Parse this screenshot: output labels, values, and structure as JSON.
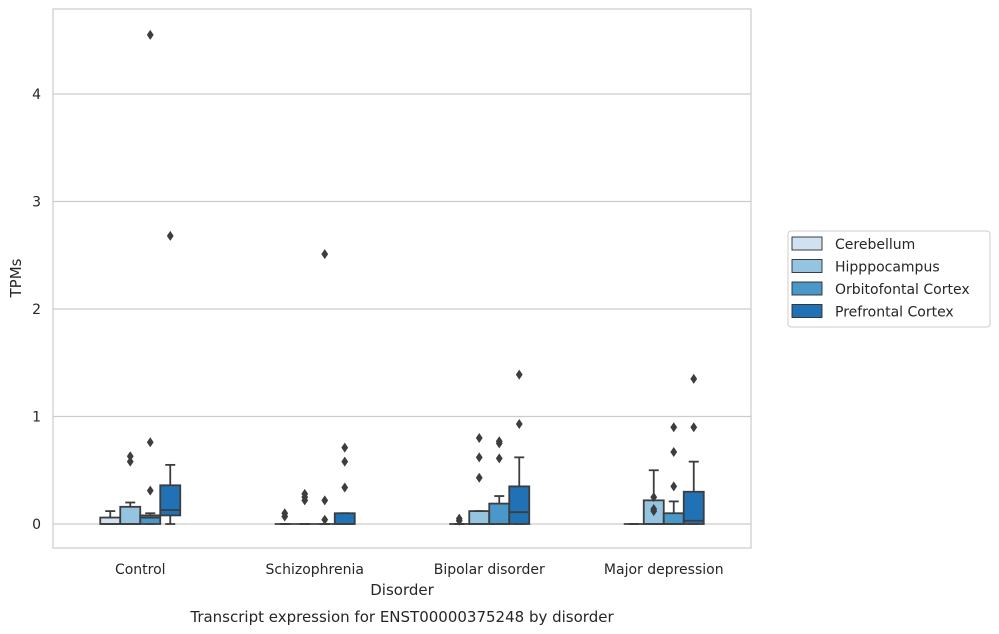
{
  "chart_data": {
    "type": "box",
    "categories": [
      "Control",
      "Schizophrenia",
      "Bipolar disorder",
      "Major depression"
    ],
    "xlabel": "Disorder",
    "ylabel": "TPMs",
    "caption": "Transcript expression for ENST00000375248 by disorder",
    "ylim": [
      -0.22,
      4.8
    ],
    "yticks": [
      0,
      1,
      2,
      3,
      4
    ],
    "grid": "horizontal",
    "legend_position": "right",
    "series": [
      {
        "name": "Cerebellum",
        "color": "#d0e1f2",
        "boxes": [
          {
            "q1": 0.0,
            "median": 0.0,
            "q3": 0.06,
            "whisker_low": 0.0,
            "whisker_high": 0.12,
            "outliers": []
          },
          {
            "q1": 0.0,
            "median": 0.0,
            "q3": 0.0,
            "whisker_low": 0.0,
            "whisker_high": 0.0,
            "outliers": [
              0.07,
              0.1
            ]
          },
          {
            "q1": 0.0,
            "median": 0.0,
            "q3": 0.0,
            "whisker_low": 0.0,
            "whisker_high": 0.0,
            "outliers": [
              0.03,
              0.05
            ]
          },
          {
            "q1": 0.0,
            "median": 0.0,
            "q3": 0.0,
            "whisker_low": 0.0,
            "whisker_high": 0.0,
            "outliers": []
          }
        ]
      },
      {
        "name": "Hipppocampus",
        "color": "#94c4df",
        "boxes": [
          {
            "q1": 0.0,
            "median": 0.0,
            "q3": 0.16,
            "whisker_low": 0.0,
            "whisker_high": 0.2,
            "outliers": [
              0.58,
              0.63
            ]
          },
          {
            "q1": 0.0,
            "median": 0.0,
            "q3": 0.0,
            "whisker_low": 0.0,
            "whisker_high": 0.0,
            "outliers": [
              0.22,
              0.25,
              0.28
            ]
          },
          {
            "q1": 0.0,
            "median": 0.0,
            "q3": 0.12,
            "whisker_low": 0.0,
            "whisker_high": 0.12,
            "outliers": [
              0.43,
              0.62,
              0.8
            ]
          },
          {
            "q1": 0.0,
            "median": 0.0,
            "q3": 0.22,
            "whisker_low": 0.0,
            "whisker_high": 0.5,
            "outliers": [
              0.12,
              0.14,
              0.25
            ]
          }
        ]
      },
      {
        "name": "Orbitofontal Cortex",
        "color": "#4a98c9",
        "boxes": [
          {
            "q1": 0.0,
            "median": 0.06,
            "q3": 0.08,
            "whisker_low": 0.0,
            "whisker_high": 0.1,
            "outliers": [
              0.31,
              0.76,
              4.55
            ]
          },
          {
            "q1": 0.0,
            "median": 0.0,
            "q3": 0.0,
            "whisker_low": 0.0,
            "whisker_high": 0.0,
            "outliers": [
              0.04,
              0.22,
              2.51
            ]
          },
          {
            "q1": 0.0,
            "median": 0.0,
            "q3": 0.19,
            "whisker_low": 0.0,
            "whisker_high": 0.26,
            "outliers": [
              0.61,
              0.75,
              0.77
            ]
          },
          {
            "q1": 0.0,
            "median": 0.0,
            "q3": 0.1,
            "whisker_low": 0.0,
            "whisker_high": 0.21,
            "outliers": [
              0.35,
              0.67,
              0.9
            ]
          }
        ]
      },
      {
        "name": "Prefrontal Cortex",
        "color": "#2171b5",
        "boxes": [
          {
            "q1": 0.08,
            "median": 0.13,
            "q3": 0.36,
            "whisker_low": 0.0,
            "whisker_high": 0.55,
            "outliers": [
              2.68
            ]
          },
          {
            "q1": 0.0,
            "median": 0.0,
            "q3": 0.1,
            "whisker_low": 0.0,
            "whisker_high": 0.1,
            "outliers": [
              0.34,
              0.58,
              0.71
            ]
          },
          {
            "q1": 0.0,
            "median": 0.11,
            "q3": 0.35,
            "whisker_low": 0.0,
            "whisker_high": 0.62,
            "outliers": [
              0.93,
              1.39
            ]
          },
          {
            "q1": 0.0,
            "median": 0.03,
            "q3": 0.3,
            "whisker_low": 0.0,
            "whisker_high": 0.58,
            "outliers": [
              0.9,
              1.35
            ]
          }
        ]
      }
    ]
  }
}
